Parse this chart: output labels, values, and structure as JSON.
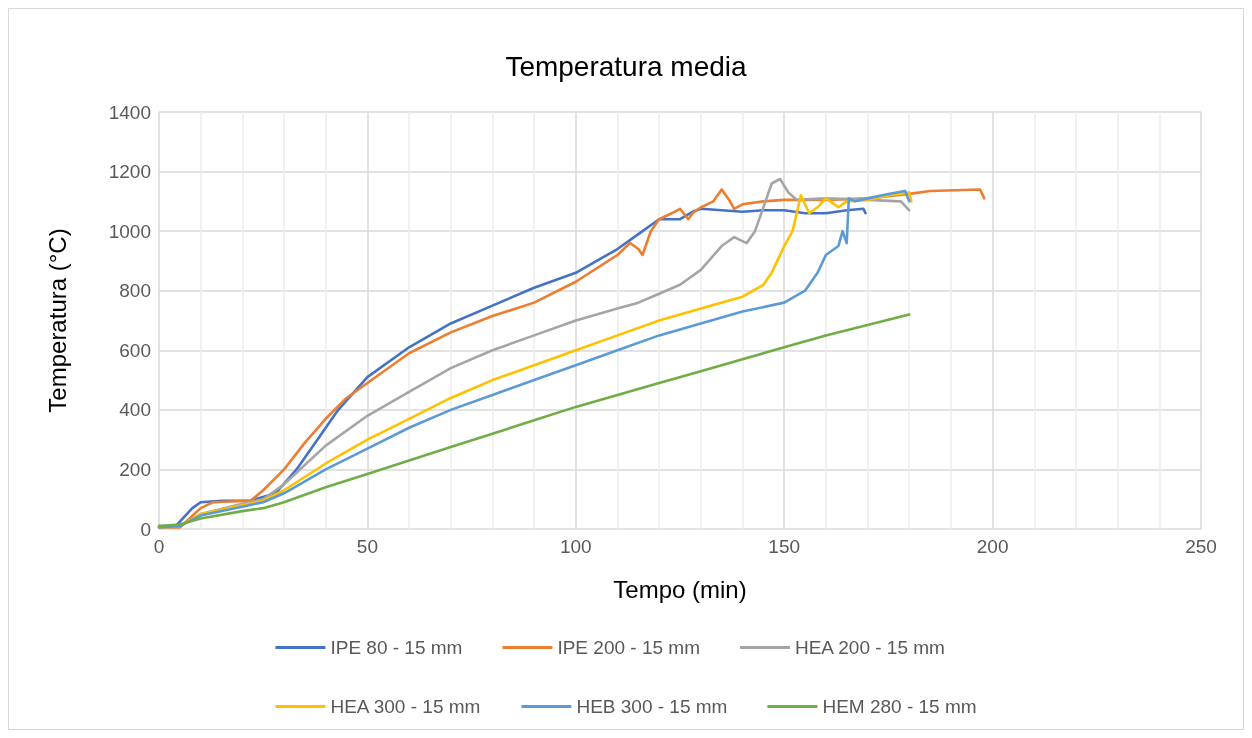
{
  "chart_data": {
    "type": "line",
    "title": "Temperatura media",
    "xlabel": "Tempo (min)",
    "ylabel": "Temperatura (°C)",
    "xlim": [
      0,
      250
    ],
    "xticks": [
      0,
      50,
      100,
      150,
      200,
      250
    ],
    "ylim": [
      0,
      1400
    ],
    "yticks": [
      0,
      200,
      400,
      600,
      800,
      1000,
      1200,
      1400
    ],
    "grid": true,
    "legend": "bottom",
    "marker": "none",
    "line_style": "solid",
    "series": [
      {
        "name": "IPE 80 - 15 mm",
        "color": "#4472c4",
        "x": [
          0,
          4,
          8,
          10,
          15,
          22,
          28,
          33,
          38,
          43,
          50,
          60,
          70,
          80,
          90,
          100,
          110,
          115,
          120,
          125,
          128,
          130,
          135,
          140,
          145,
          150,
          155,
          160,
          165,
          169,
          169.5
        ],
        "values": [
          10,
          10,
          70,
          90,
          95,
          95,
          120,
          200,
          300,
          400,
          510,
          610,
          690,
          750,
          810,
          860,
          940,
          990,
          1040,
          1040,
          1065,
          1075,
          1070,
          1065,
          1070,
          1070,
          1060,
          1060,
          1070,
          1075,
          1060
        ]
      },
      {
        "name": "IPE 200 - 15 mm",
        "color": "#ed7d31",
        "x": [
          0,
          5,
          10,
          13,
          22,
          25,
          30,
          35,
          40,
          45,
          50,
          60,
          70,
          80,
          90,
          100,
          110,
          113,
          115,
          116,
          118,
          120,
          123,
          125,
          127,
          128,
          130,
          133,
          135,
          137,
          138,
          140,
          145,
          150,
          160,
          170,
          180,
          185,
          197,
          198
        ],
        "values": [
          5,
          5,
          70,
          90,
          95,
          130,
          200,
          290,
          370,
          440,
          490,
          590,
          660,
          715,
          760,
          830,
          920,
          960,
          940,
          920,
          1000,
          1040,
          1060,
          1075,
          1040,
          1060,
          1080,
          1100,
          1140,
          1100,
          1075,
          1090,
          1100,
          1105,
          1105,
          1110,
          1125,
          1135,
          1140,
          1110
        ]
      },
      {
        "name": "HEA 200 - 15 mm",
        "color": "#a5a5a5",
        "x": [
          0,
          5,
          10,
          20,
          25,
          30,
          40,
          50,
          60,
          70,
          80,
          90,
          100,
          110,
          115,
          120,
          125,
          130,
          135,
          138,
          141,
          143,
          145,
          147,
          149,
          151,
          153,
          160,
          170,
          178,
          180
        ],
        "values": [
          5,
          10,
          50,
          85,
          100,
          150,
          280,
          380,
          460,
          540,
          600,
          650,
          700,
          740,
          760,
          790,
          820,
          870,
          950,
          980,
          960,
          1000,
          1080,
          1160,
          1175,
          1130,
          1105,
          1110,
          1105,
          1100,
          1070
        ]
      },
      {
        "name": "HEA 300 - 15 mm",
        "color": "#ffc000",
        "x": [
          0,
          5,
          10,
          20,
          25,
          30,
          40,
          50,
          60,
          70,
          80,
          90,
          100,
          110,
          120,
          130,
          140,
          145,
          147,
          150,
          152,
          154,
          156,
          158,
          160,
          163,
          165,
          170,
          175,
          180,
          180.5
        ],
        "values": [
          5,
          10,
          50,
          80,
          95,
          130,
          220,
          300,
          370,
          440,
          500,
          550,
          600,
          650,
          700,
          740,
          780,
          820,
          860,
          950,
          1000,
          1120,
          1060,
          1080,
          1110,
          1080,
          1100,
          1105,
          1120,
          1130,
          1100
        ]
      },
      {
        "name": "HEB 300 - 15 mm",
        "color": "#5b9bd5",
        "x": [
          0,
          5,
          10,
          20,
          25,
          30,
          40,
          50,
          60,
          70,
          80,
          90,
          100,
          110,
          120,
          130,
          140,
          150,
          155,
          158,
          160,
          163,
          164,
          165,
          165.5,
          167,
          170,
          175,
          179,
          180
        ],
        "values": [
          5,
          10,
          45,
          75,
          90,
          120,
          200,
          270,
          340,
          400,
          450,
          500,
          550,
          600,
          650,
          690,
          730,
          760,
          800,
          860,
          920,
          950,
          1000,
          960,
          1110,
          1100,
          1110,
          1125,
          1135,
          1100
        ]
      },
      {
        "name": "HEM 280 - 15 mm",
        "color": "#70ad47",
        "x": [
          0,
          5,
          10,
          20,
          25,
          30,
          40,
          50,
          60,
          70,
          80,
          90,
          100,
          110,
          120,
          130,
          140,
          150,
          160,
          170,
          180
        ],
        "values": [
          10,
          15,
          35,
          60,
          70,
          90,
          140,
          185,
          230,
          275,
          320,
          365,
          410,
          450,
          490,
          530,
          570,
          610,
          650,
          685,
          720
        ]
      }
    ]
  }
}
